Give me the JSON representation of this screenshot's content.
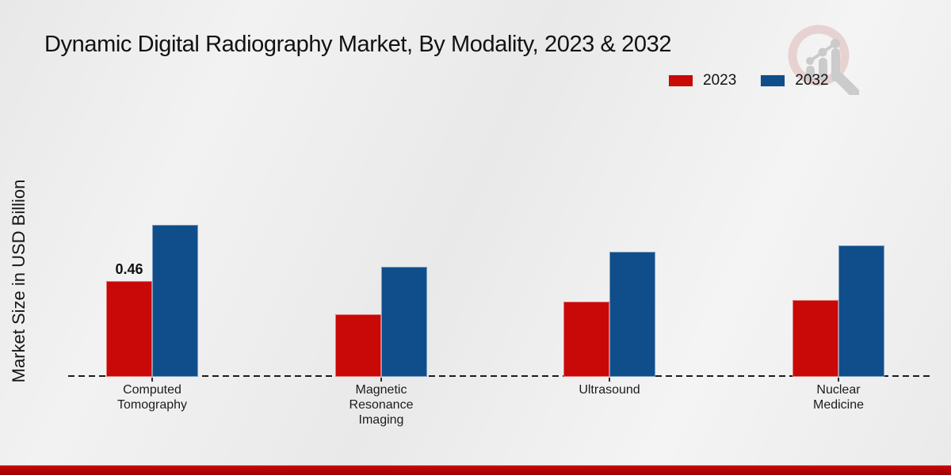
{
  "title": "Dynamic Digital Radiography Market, By Modality, 2023 & 2032",
  "y_axis_label": "Market Size in USD Billion",
  "legend": [
    {
      "label": "2023",
      "color": "#c90808"
    },
    {
      "label": "2032",
      "color": "#0f4e8b"
    }
  ],
  "chart_data": {
    "type": "bar",
    "title": "Dynamic Digital Radiography Market, By Modality, 2023 & 2032",
    "xlabel": "",
    "ylabel": "Market Size in USD Billion",
    "categories": [
      "Computed Tomography",
      "Magnetic Resonance Imaging",
      "Ultrasound",
      "Nuclear Medicine"
    ],
    "series": [
      {
        "name": "2023",
        "color": "#c90808",
        "values": [
          0.46,
          0.3,
          0.36,
          0.37
        ],
        "value_labels": [
          "0.46",
          "",
          "",
          ""
        ]
      },
      {
        "name": "2032",
        "color": "#0f4e8b",
        "values": [
          0.73,
          0.53,
          0.6,
          0.63
        ],
        "value_labels": [
          "",
          "",
          "",
          ""
        ]
      }
    ],
    "ylim": [
      0,
      1.0
    ],
    "grid": false,
    "y_ticks_visible": false,
    "baseline_style": "dashed",
    "legend_position": "top-right"
  },
  "colors": {
    "background": "#ededed",
    "footer_band": "#b50404",
    "axis": "#1c1c1c",
    "logo_ring": "#e2c4c4",
    "logo_gray": "#c7c7c7"
  }
}
